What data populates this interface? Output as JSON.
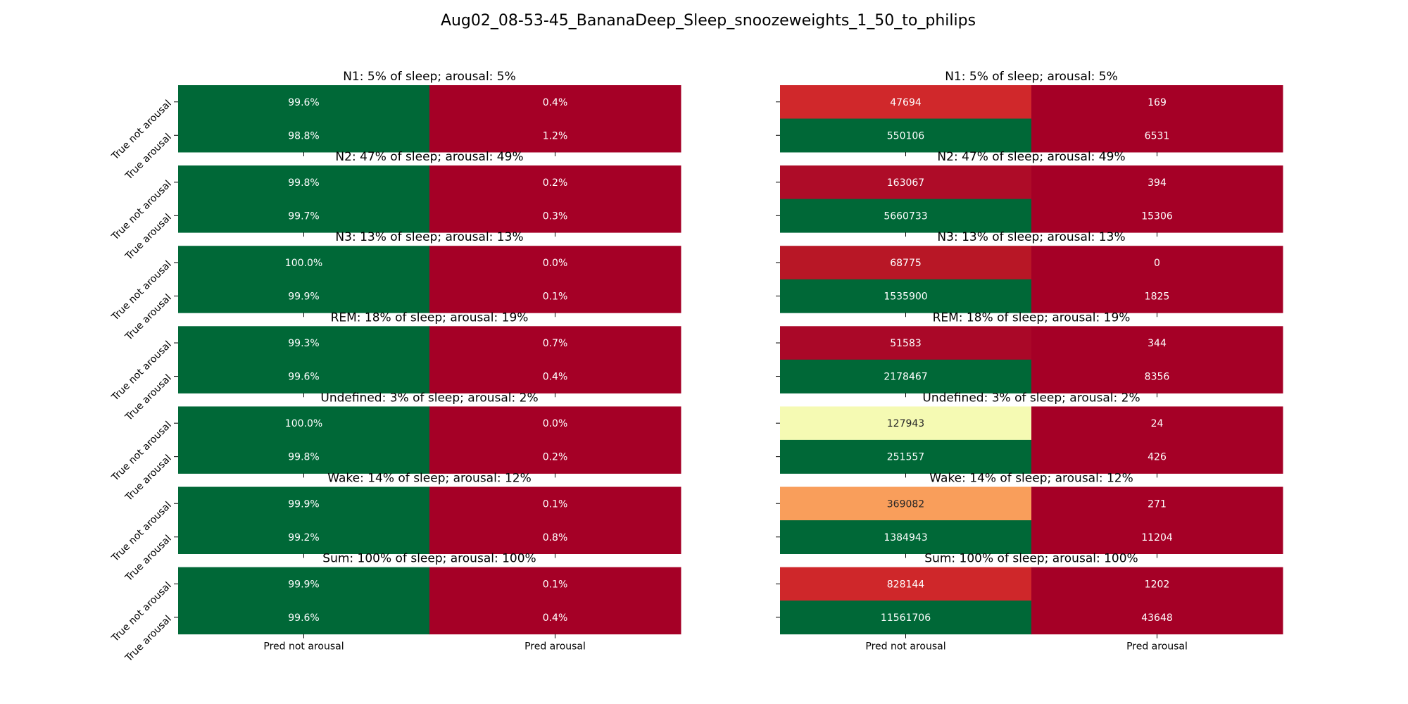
{
  "figure": {
    "title": "Aug02_08-53-45_BananaDeep_Sleep_snoozeweights_1_50_to_philips"
  },
  "chart_data": {
    "type": "heatmap",
    "row_labels": [
      "True not arousal",
      "True arousal"
    ],
    "col_labels": [
      "Pred not arousal",
      "Pred arousal"
    ],
    "panels": [
      {
        "title": "N1: 5% of sleep; arousal: 5%",
        "percent": [
          "99.6%",
          "0.4%",
          "98.8%",
          "1.2%"
        ],
        "pct_values": [
          99.6,
          0.4,
          98.8,
          1.2
        ],
        "counts": [
          47694,
          169,
          550106,
          6531
        ]
      },
      {
        "title": "N2: 47% of sleep; arousal: 49%",
        "percent": [
          "99.8%",
          "0.2%",
          "99.7%",
          "0.3%"
        ],
        "pct_values": [
          99.8,
          0.2,
          99.7,
          0.3
        ],
        "counts": [
          163067,
          394,
          5660733,
          15306
        ]
      },
      {
        "title": "N3: 13% of sleep; arousal: 13%",
        "percent": [
          "100.0%",
          "0.0%",
          "99.9%",
          "0.1%"
        ],
        "pct_values": [
          100.0,
          0.0,
          99.9,
          0.1
        ],
        "counts": [
          68775,
          0,
          1535900,
          1825
        ]
      },
      {
        "title": "REM: 18% of sleep; arousal: 19%",
        "percent": [
          "99.3%",
          "0.7%",
          "99.6%",
          "0.4%"
        ],
        "pct_values": [
          99.3,
          0.7,
          99.6,
          0.4
        ],
        "counts": [
          51583,
          344,
          2178467,
          8356
        ]
      },
      {
        "title": "Undefined: 3% of sleep; arousal: 2%",
        "percent": [
          "100.0%",
          "0.0%",
          "99.8%",
          "0.2%"
        ],
        "pct_values": [
          100.0,
          0.0,
          99.8,
          0.2
        ],
        "counts": [
          127943,
          24,
          251557,
          426
        ]
      },
      {
        "title": "Wake: 14% of sleep; arousal: 12%",
        "percent": [
          "99.9%",
          "0.1%",
          "99.2%",
          "0.8%"
        ],
        "pct_values": [
          99.9,
          0.1,
          99.2,
          0.8
        ],
        "counts": [
          369082,
          271,
          1384943,
          11204
        ]
      },
      {
        "title": "Sum: 100% of sleep; arousal: 100%",
        "percent": [
          "99.9%",
          "0.1%",
          "99.6%",
          "0.4%"
        ],
        "pct_values": [
          99.9,
          0.1,
          99.6,
          0.4
        ],
        "counts": [
          828144,
          1202,
          11561706,
          43648
        ]
      }
    ],
    "count_cell_colors": [
      [
        "#d0282b",
        "#a50026",
        "#006837",
        "#a50026"
      ],
      [
        "#ae0c28",
        "#a50026",
        "#006837",
        "#a50026"
      ],
      [
        "#b81726",
        "#a50026",
        "#006837",
        "#a50026"
      ],
      [
        "#aa0828",
        "#a50026",
        "#006837",
        "#a50026"
      ],
      [
        "#f5fab3",
        "#a50026",
        "#006837",
        "#a50026"
      ],
      [
        "#f99e5b",
        "#a50026",
        "#006837",
        "#a50026"
      ],
      [
        "#cf272a",
        "#a50026",
        "#006837",
        "#a50026"
      ]
    ],
    "colormap": "RdYlGn",
    "percent_colors": {
      "high": "#006837",
      "low": "#a50026"
    }
  }
}
